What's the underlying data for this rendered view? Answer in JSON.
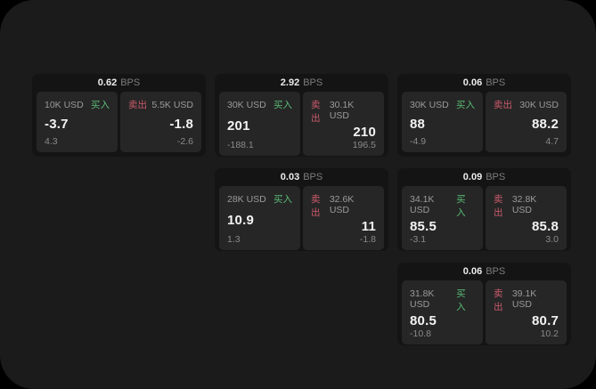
{
  "colors": {
    "page_bg": "#000000",
    "surface_bg": "#1b1b1b",
    "card_bg": "#141414",
    "panel_bg": "#262626",
    "buy_green": "#5abb76",
    "sell_red": "#cb5a6b",
    "text_primary": "#f3f3f3",
    "text_muted": "#8f8f8f"
  },
  "labels": {
    "bps_unit": "BPS",
    "buy": "买入",
    "sell": "卖出"
  },
  "cards": [
    {
      "grid": {
        "row": 1,
        "col": 1
      },
      "bps": "0.62",
      "buy": {
        "size": "10K USD",
        "value": "-3.7",
        "sub": "4.3"
      },
      "sell": {
        "size": "5.5K USD",
        "value": "-1.8",
        "sub": "-2.6"
      }
    },
    {
      "grid": {
        "row": 1,
        "col": 2
      },
      "bps": "2.92",
      "buy": {
        "size": "30K USD",
        "value": "201",
        "sub": "-188.1"
      },
      "sell": {
        "size": "30.1K USD",
        "value": "210",
        "sub": "196.5"
      }
    },
    {
      "grid": {
        "row": 1,
        "col": 3
      },
      "bps": "0.06",
      "buy": {
        "size": "30K USD",
        "value": "88",
        "sub": "-4.9"
      },
      "sell": {
        "size": "30K USD",
        "value": "88.2",
        "sub": "4.7"
      }
    },
    {
      "grid": {
        "row": 2,
        "col": 2
      },
      "bps": "0.03",
      "buy": {
        "size": "28K USD",
        "value": "10.9",
        "sub": "1.3"
      },
      "sell": {
        "size": "32.6K USD",
        "value": "11",
        "sub": "-1.8"
      }
    },
    {
      "grid": {
        "row": 2,
        "col": 3
      },
      "bps": "0.09",
      "buy": {
        "size": "34.1K USD",
        "value": "85.5",
        "sub": "-3.1"
      },
      "sell": {
        "size": "32.8K USD",
        "value": "85.8",
        "sub": "3.0"
      }
    },
    {
      "grid": {
        "row": 3,
        "col": 3
      },
      "bps": "0.06",
      "buy": {
        "size": "31.8K USD",
        "value": "80.5",
        "sub": "-10.8"
      },
      "sell": {
        "size": "39.1K USD",
        "value": "80.7",
        "sub": "10.2"
      }
    }
  ]
}
